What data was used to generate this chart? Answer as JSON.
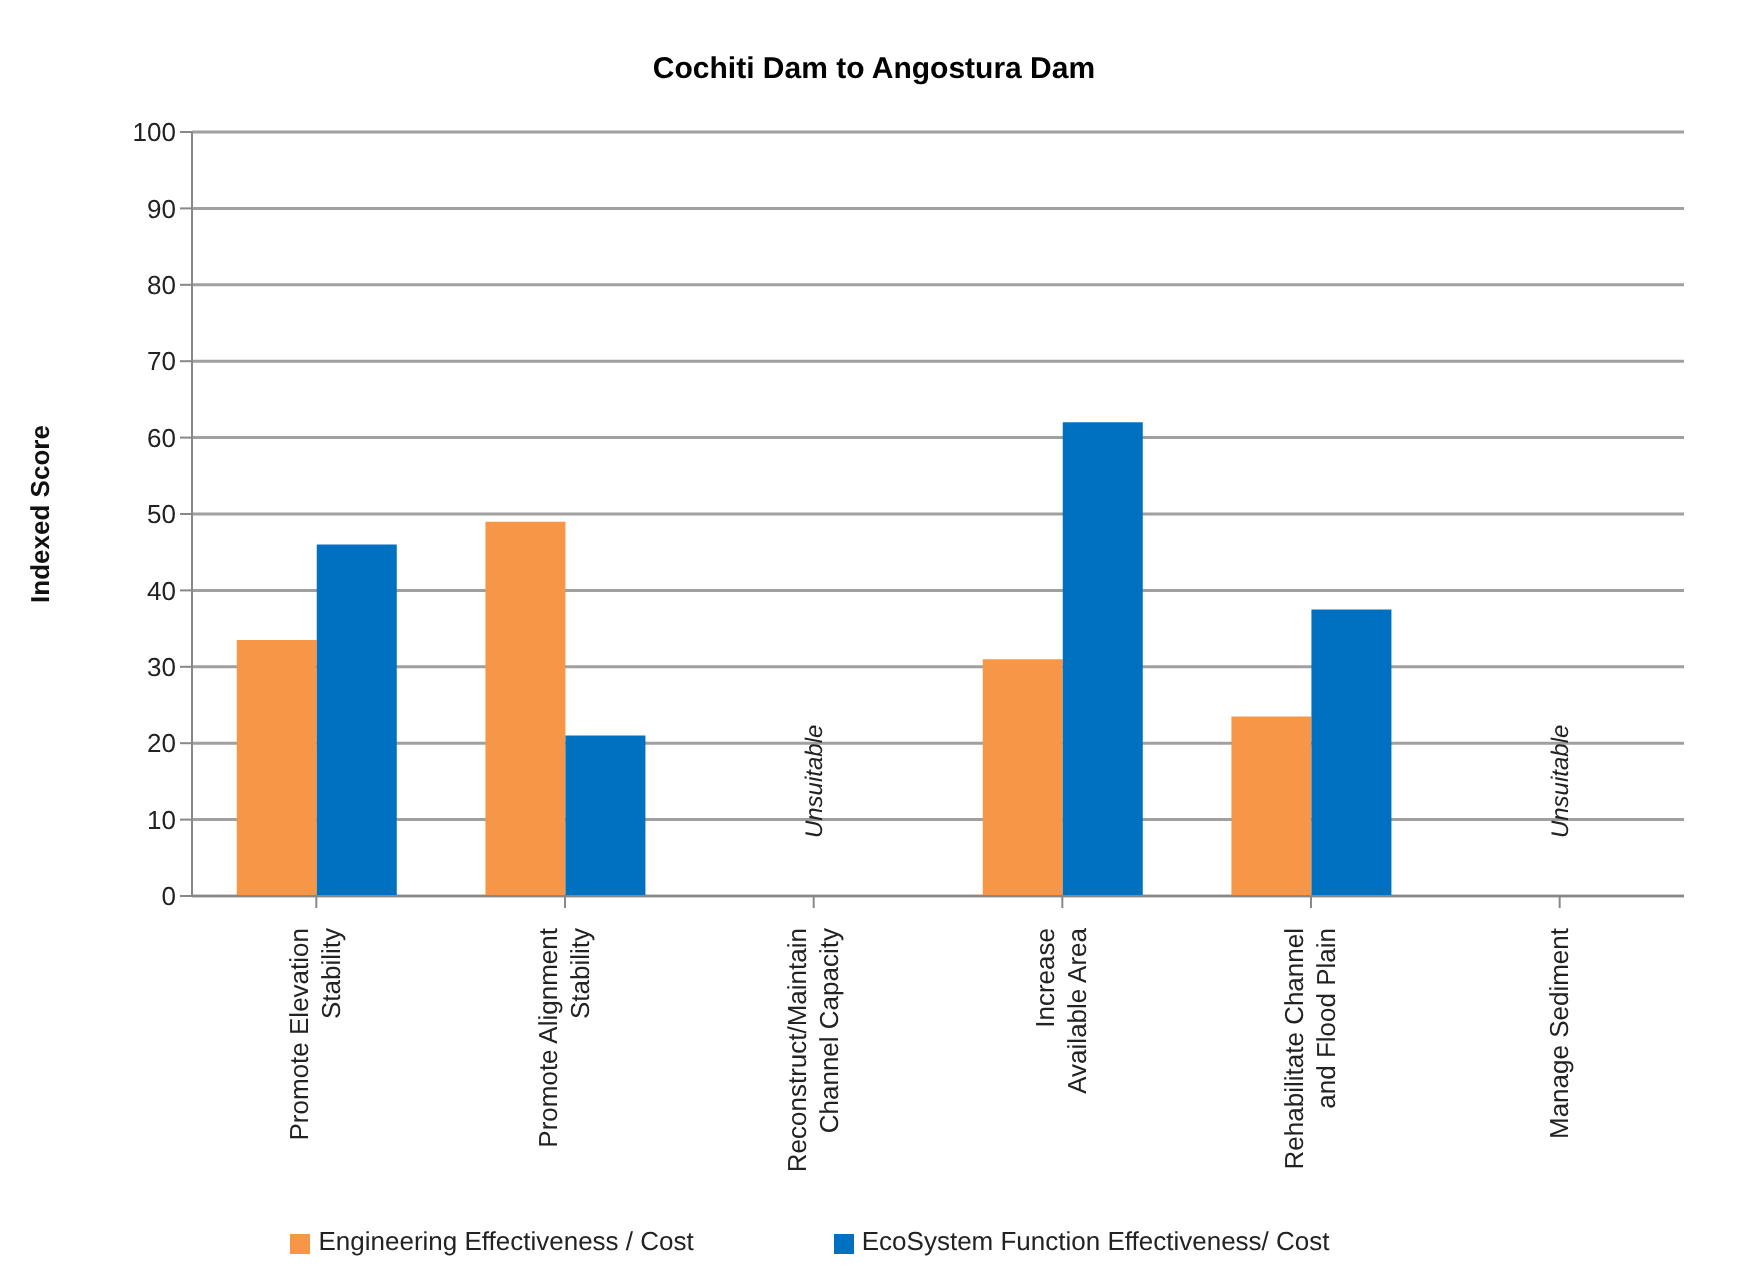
{
  "chart_data": {
    "type": "bar",
    "title": "Cochiti Dam to Angostura Dam",
    "ylabel": "Indexed Score",
    "categories": [
      "Promote Elevation\nStability",
      "Promote Alignment\nStability",
      "Reconstruct/Maintain\nChannel Capacity",
      "Increase\nAvailable Area",
      "Rehabilitate Channel\nand Flood Plain",
      "Manage Sediment"
    ],
    "series": [
      {
        "name": "Engineering Effectiveness / Cost",
        "color": "#f79646",
        "values": [
          33.5,
          49,
          null,
          31,
          23.5,
          null
        ]
      },
      {
        "name": "EcoSystem Function Effectiveness/ Cost",
        "color": "#0070c0",
        "values": [
          46,
          21,
          null,
          62,
          37.5,
          null
        ]
      }
    ],
    "annotations": [
      "Unsuitable",
      "Unsuitable"
    ],
    "ylim": [
      0,
      100
    ],
    "yticks": [
      0,
      10,
      20,
      30,
      40,
      50,
      60,
      70,
      80,
      90,
      100
    ],
    "grid": "y",
    "legend": "bottom"
  }
}
